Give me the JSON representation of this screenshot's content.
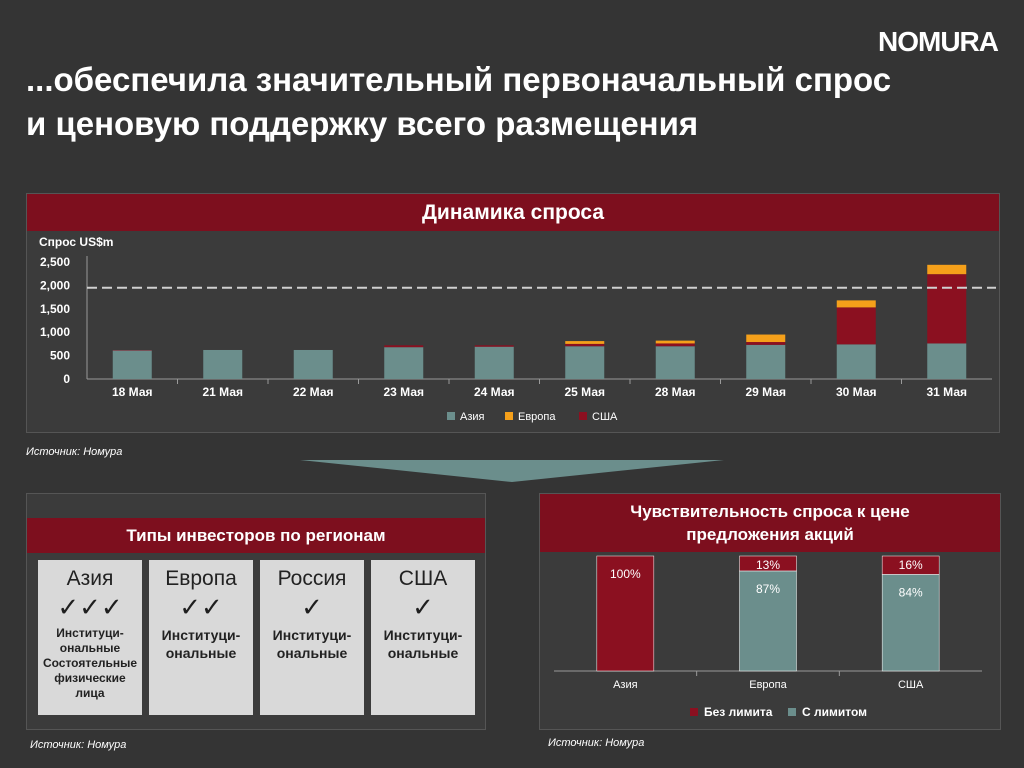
{
  "logo": "NOMURA",
  "title_line1": "...обеспечила значительный первоначальный спрос",
  "title_line2": "и ценовую поддержку всего размещения",
  "demand": {
    "header": "Динамика спроса",
    "source": "Источник: Номура"
  },
  "types": {
    "header": "Типы инвесторов по регионам",
    "source": "Источник: Номура",
    "cards": [
      {
        "region": "Азия",
        "checks": "✓✓✓",
        "lines": [
          "Институци-",
          "ональные",
          "Состоятельные",
          "физические",
          "лица"
        ],
        "small": true
      },
      {
        "region": "Европа",
        "checks": "✓✓",
        "lines": [
          "Институци-",
          "ональные"
        ],
        "small": false
      },
      {
        "region": "Россия",
        "checks": "✓",
        "lines": [
          "Институци-",
          "ональные"
        ],
        "small": false
      },
      {
        "region": "США",
        "checks": "✓",
        "lines": [
          "Институци-",
          "ональные"
        ],
        "small": false
      }
    ]
  },
  "sensitivity": {
    "header_line1": "Чувствительность спроса к цене",
    "header_line2": "предложения акций",
    "source": "Источник: Номура"
  },
  "colors": {
    "asia": "#6b8e8c",
    "europe": "#f5a01a",
    "usa": "#8b1020",
    "no_limit": "#8b1020",
    "with_limit": "#6b8e8c",
    "header": "#7d0f1e"
  },
  "chart_data": [
    {
      "type": "bar",
      "stacked": true,
      "title": "Динамика спроса",
      "ylabel": "Спрос US$m",
      "ylim": [
        0,
        2500
      ],
      "yticks": [
        "2,500",
        "2,000",
        "1,500",
        "1,000",
        "500",
        "0"
      ],
      "ytick_values": [
        2500,
        2000,
        1500,
        1000,
        500,
        0
      ],
      "categories": [
        "18 Мая",
        "21 Мая",
        "22 Мая",
        "23 Мая",
        "24 Мая",
        "25 Мая",
        "28 Мая",
        "29 Мая",
        "30 Мая",
        "31 Мая"
      ],
      "series": [
        {
          "name": "Азия",
          "values": [
            610,
            620,
            620,
            680,
            690,
            700,
            700,
            730,
            740,
            760
          ]
        },
        {
          "name": "США",
          "values": [
            10,
            0,
            0,
            40,
            30,
            50,
            60,
            60,
            790,
            1480
          ]
        },
        {
          "name": "Европа",
          "values": [
            0,
            0,
            0,
            0,
            0,
            60,
            60,
            160,
            150,
            200
          ]
        }
      ],
      "legend": [
        "Азия",
        "Европа",
        "США"
      ],
      "reference_line": 1950,
      "legend_position": "bottom"
    },
    {
      "type": "bar",
      "stacked": true,
      "title": "Чувствительность спроса к цене предложения акций",
      "categories": [
        "Азия",
        "Европа",
        "США"
      ],
      "series": [
        {
          "name": "С лимитом",
          "values": [
            0,
            87,
            84
          ],
          "labels": [
            "",
            "87%",
            "84%"
          ]
        },
        {
          "name": "Без лимита",
          "values": [
            100,
            13,
            16
          ],
          "labels": [
            "100%",
            "13%",
            "16%"
          ]
        }
      ],
      "legend": [
        "Без лимита",
        "С лимитом"
      ],
      "legend_position": "bottom",
      "ylim": [
        0,
        100
      ]
    }
  ]
}
